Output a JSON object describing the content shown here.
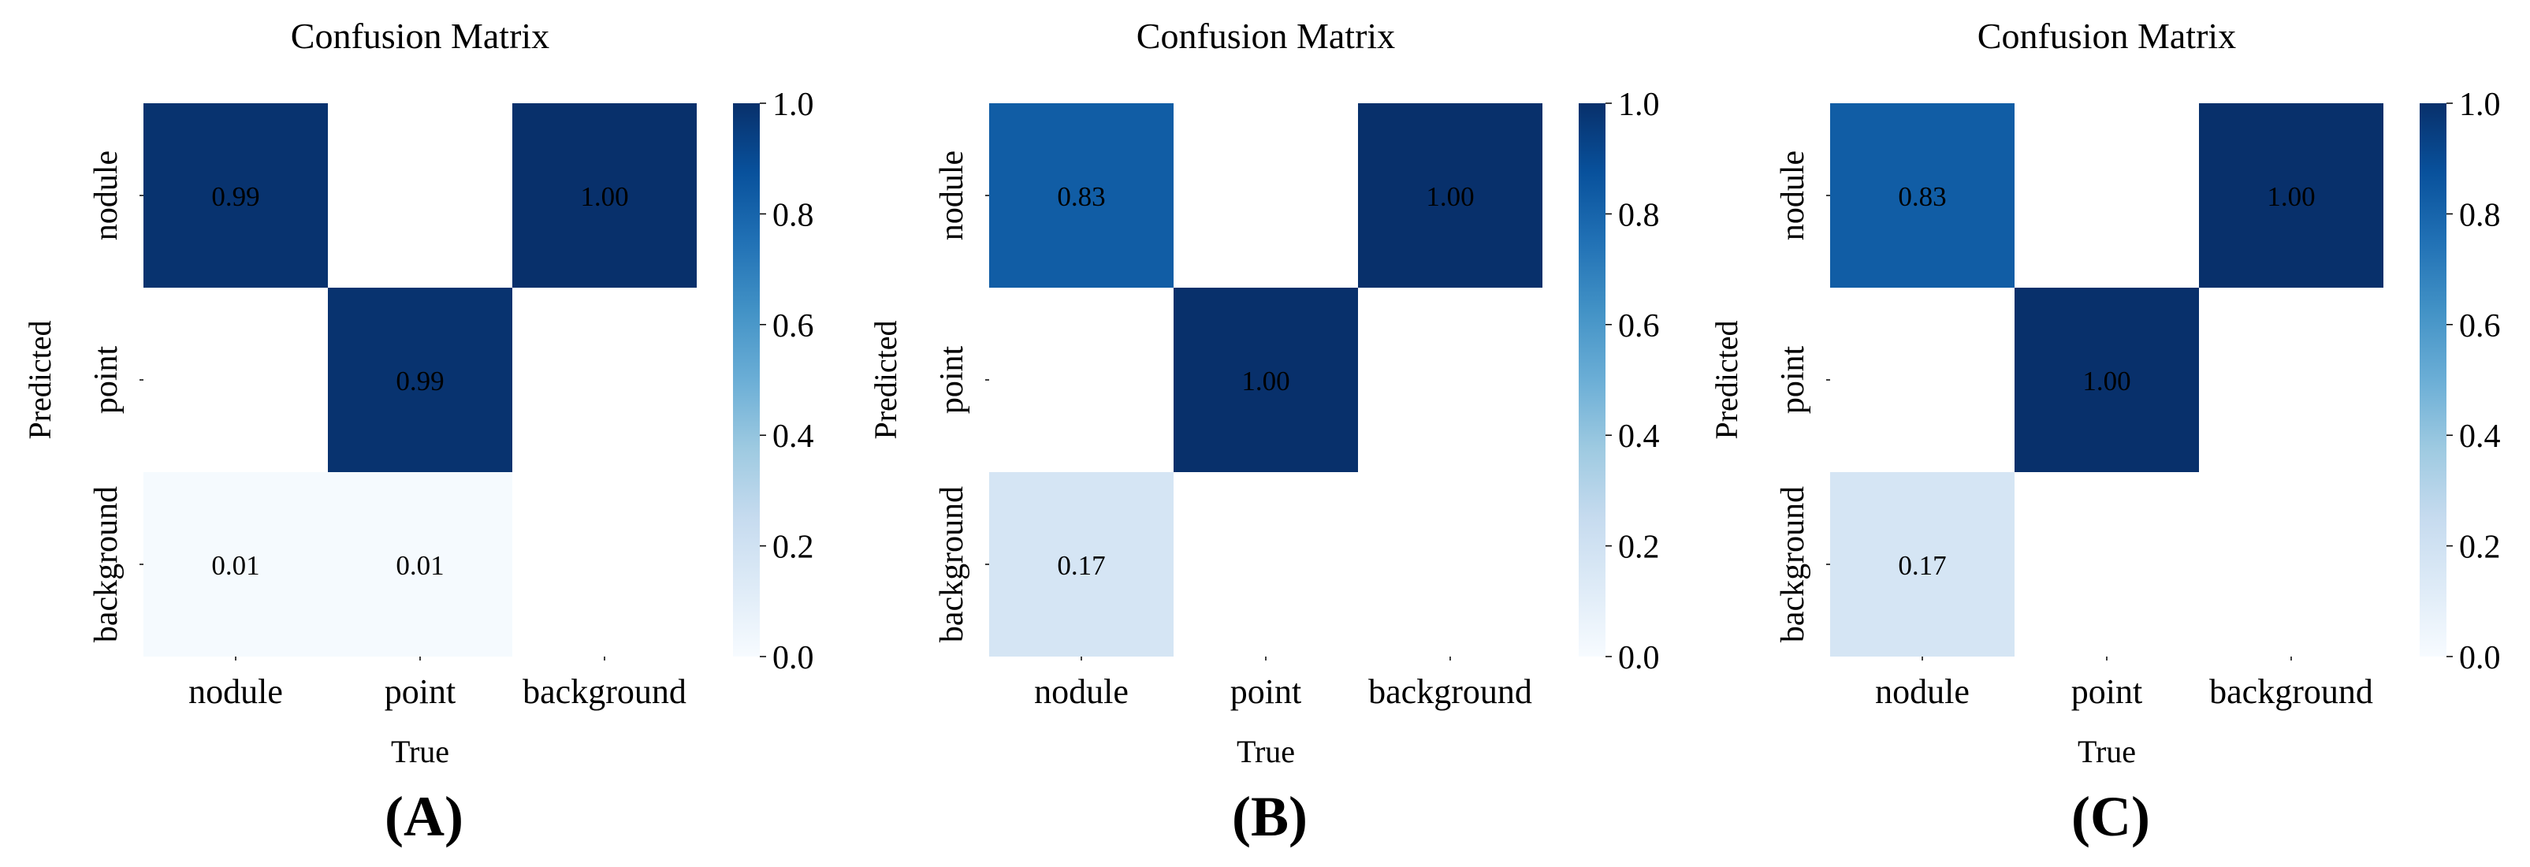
{
  "colors": {
    "cmap": [
      "#f7fbff",
      "#deebf7",
      "#c6dbef",
      "#9ecae1",
      "#6baed6",
      "#4292c6",
      "#2171b5",
      "#08519c",
      "#08306b"
    ],
    "text_dark": "#000000",
    "text_light": "#ffffff",
    "axis": "#000000"
  },
  "chart_data": [
    {
      "type": "heatmap",
      "title": "Confusion Matrix",
      "panel_label": "(A)",
      "xlabel": "True",
      "ylabel": "Predicted",
      "x_categories": [
        "nodule",
        "point",
        "background"
      ],
      "y_categories": [
        "nodule",
        "point",
        "background"
      ],
      "values": [
        [
          0.99,
          null,
          1.0
        ],
        [
          null,
          0.99,
          null
        ],
        [
          0.01,
          0.01,
          null
        ]
      ],
      "value_labels": [
        [
          "0.99",
          "",
          "1.00"
        ],
        [
          "",
          "0.99",
          ""
        ],
        [
          "0.01",
          "0.01",
          ""
        ]
      ],
      "colorbar": {
        "range": [
          0.0,
          1.0
        ],
        "ticks": [
          "0.0",
          "0.2",
          "0.4",
          "0.6",
          "0.8",
          "1.0"
        ]
      }
    },
    {
      "type": "heatmap",
      "title": "Confusion Matrix",
      "panel_label": "(B)",
      "xlabel": "True",
      "ylabel": "Predicted",
      "x_categories": [
        "nodule",
        "point",
        "background"
      ],
      "y_categories": [
        "nodule",
        "point",
        "background"
      ],
      "values": [
        [
          0.83,
          null,
          1.0
        ],
        [
          null,
          1.0,
          null
        ],
        [
          0.17,
          null,
          null
        ]
      ],
      "value_labels": [
        [
          "0.83",
          "",
          "1.00"
        ],
        [
          "",
          "1.00",
          ""
        ],
        [
          "0.17",
          "",
          ""
        ]
      ],
      "colorbar": {
        "range": [
          0.0,
          1.0
        ],
        "ticks": [
          "0.0",
          "0.2",
          "0.4",
          "0.6",
          "0.8",
          "1.0"
        ]
      }
    },
    {
      "type": "heatmap",
      "title": "Confusion Matrix",
      "panel_label": "(C)",
      "xlabel": "True",
      "ylabel": "Predicted",
      "x_categories": [
        "nodule",
        "point",
        "background"
      ],
      "y_categories": [
        "nodule",
        "point",
        "background"
      ],
      "values": [
        [
          0.83,
          null,
          1.0
        ],
        [
          null,
          1.0,
          null
        ],
        [
          0.17,
          null,
          null
        ]
      ],
      "value_labels": [
        [
          "0.83",
          "",
          "1.00"
        ],
        [
          "",
          "1.00",
          ""
        ],
        [
          "0.17",
          "",
          ""
        ]
      ],
      "colorbar": {
        "range": [
          0.0,
          1.0
        ],
        "ticks": [
          "0.0",
          "0.2",
          "0.4",
          "0.6",
          "0.8",
          "1.0"
        ]
      }
    }
  ]
}
